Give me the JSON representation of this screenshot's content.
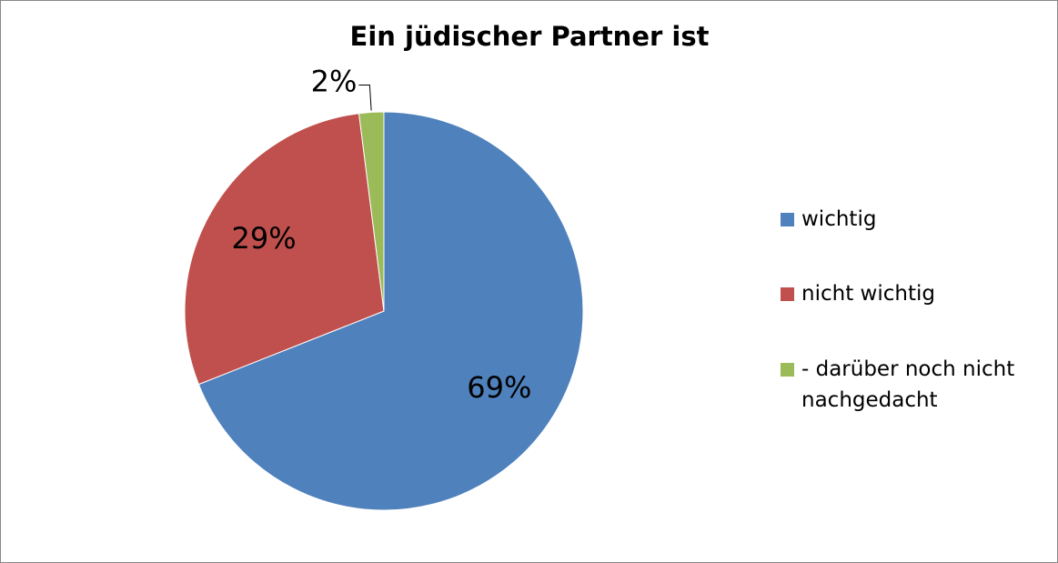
{
  "chart_data": {
    "type": "pie",
    "title": "Ein jüdischer Partner ist",
    "categories": [
      "wichtig",
      "nicht wichtig",
      "- darüber noch nicht nachgedacht"
    ],
    "values": [
      69,
      29,
      2
    ],
    "value_labels": [
      "69%",
      "29%",
      "2%"
    ],
    "colors": [
      "#4f81bd",
      "#c0504d",
      "#9bbb59"
    ],
    "legend": "right"
  }
}
